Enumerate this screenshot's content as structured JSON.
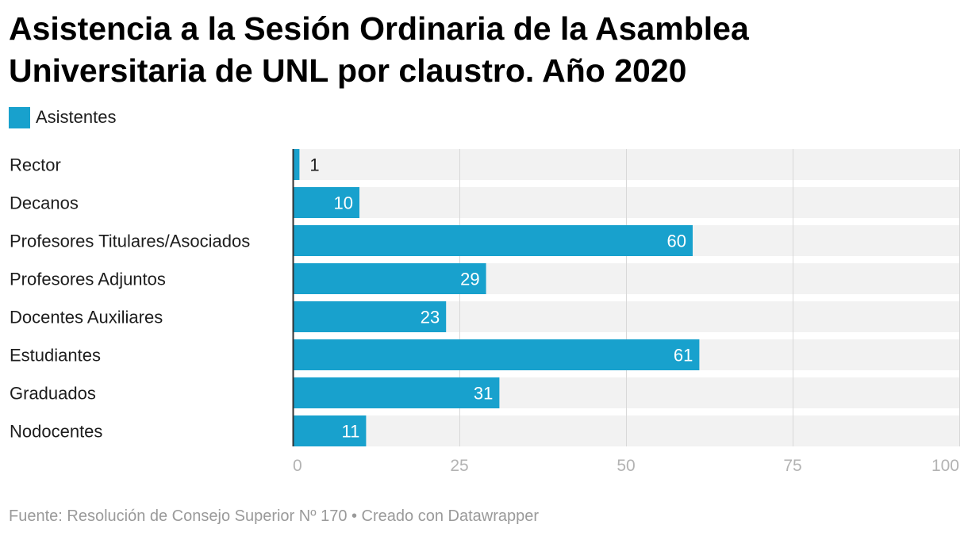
{
  "chart_data": {
    "type": "bar",
    "orientation": "horizontal",
    "title": "Asistencia a la Sesión Ordinaria de la Asamblea Universitaria de UNL por claustro. Año 2020",
    "categories": [
      "Rector",
      "Decanos",
      "Profesores Titulares/Asociados",
      "Profesores Adjuntos",
      "Docentes Auxiliares",
      "Estudiantes",
      "Graduados",
      "Nodocentes"
    ],
    "series": [
      {
        "name": "Asistentes",
        "values": [
          1,
          10,
          60,
          29,
          23,
          61,
          31,
          11
        ],
        "color": "#18a1cd"
      }
    ],
    "xlim": [
      0,
      100
    ],
    "xticks": [
      0,
      25,
      50,
      75,
      100
    ],
    "grid": true,
    "legend": "top-left"
  },
  "colors": {
    "bar": "#18a1cd",
    "track": "#f2f2f2",
    "grid": "#d8d8d8",
    "axis": "#333333",
    "label_inside": "#ffffff",
    "label_outside": "#1d1d1d"
  },
  "footer": {
    "text": "Fuente: Resolución de Consejo Superior Nº 170 • Creado con Datawrapper"
  }
}
